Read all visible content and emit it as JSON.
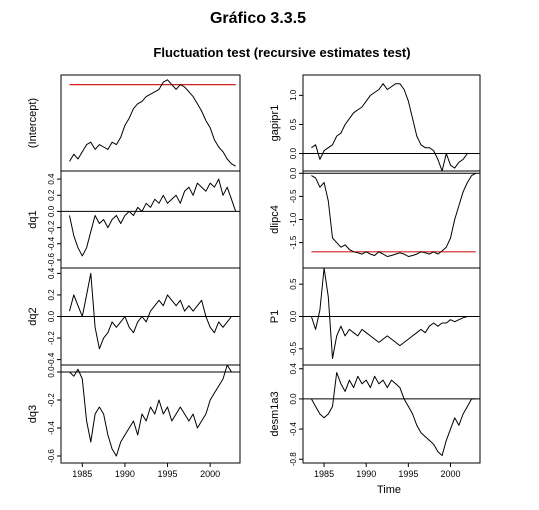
{
  "figure": {
    "suptitle": "Gráfico 3.3.5",
    "title": "Fluctuation test (recursive estimates test)",
    "xlabel_right": "Time",
    "colors": {
      "series": "#000000",
      "boundary": "#d02020",
      "reference": "#000000",
      "frame": "#000000"
    }
  },
  "chart_data": [
    {
      "type": "line",
      "name": "(Intercept)",
      "ylabel": "(Intercept)",
      "xlim": [
        1982.5,
        2003.5
      ],
      "ylim": [
        -0.1,
        1.9
      ],
      "yticks": [],
      "ytick_labels": [],
      "xticks": [],
      "xtick_labels": [],
      "boundary": 1.7,
      "reference": null,
      "series": [
        {
          "x": [
            1983.5,
            1984,
            1984.5,
            1985,
            1985.5,
            1986,
            1986.5,
            1987,
            1987.5,
            1988,
            1988.5,
            1989,
            1989.5,
            1990,
            1990.5,
            1991,
            1991.5,
            1992,
            1992.5,
            1993,
            1993.5,
            1994,
            1994.5,
            1995,
            1995.5,
            1996,
            1996.5,
            1997,
            1997.5,
            1998,
            1998.5,
            1999,
            1999.5,
            2000,
            2000.5,
            2001,
            2001.5,
            2002,
            2002.5,
            2003
          ],
          "y": [
            0.1,
            0.25,
            0.15,
            0.3,
            0.45,
            0.5,
            0.35,
            0.45,
            0.4,
            0.35,
            0.5,
            0.45,
            0.6,
            0.85,
            1.0,
            1.2,
            1.3,
            1.35,
            1.45,
            1.5,
            1.55,
            1.6,
            1.75,
            1.8,
            1.7,
            1.6,
            1.7,
            1.65,
            1.55,
            1.45,
            1.3,
            1.15,
            0.95,
            0.8,
            0.55,
            0.4,
            0.3,
            0.15,
            0.05,
            0.0
          ]
        }
      ]
    },
    {
      "type": "line",
      "name": "dq1",
      "ylabel": "dq1",
      "xlim": [
        1982.5,
        2003.5
      ],
      "ylim": [
        -0.7,
        0.5
      ],
      "yticks": [
        -0.6,
        -0.4,
        -0.2,
        0.0,
        0.2,
        0.4
      ],
      "ytick_labels": [
        "-0.6",
        "-0.4",
        "-0.2",
        "0.0",
        "0.2",
        "0.4"
      ],
      "xticks": [],
      "xtick_labels": [],
      "boundary": null,
      "reference": 0.0,
      "series": [
        {
          "x": [
            1983.5,
            1984,
            1984.5,
            1985,
            1985.5,
            1986,
            1986.5,
            1987,
            1987.5,
            1988,
            1988.5,
            1989,
            1989.5,
            1990,
            1990.5,
            1991,
            1991.5,
            1992,
            1992.5,
            1993,
            1993.5,
            1994,
            1994.5,
            1995,
            1995.5,
            1996,
            1996.5,
            1997,
            1997.5,
            1998,
            1998.5,
            1999,
            1999.5,
            2000,
            2000.5,
            2001,
            2001.5,
            2002,
            2002.5,
            2003
          ],
          "y": [
            -0.05,
            -0.3,
            -0.45,
            -0.55,
            -0.45,
            -0.25,
            -0.05,
            -0.15,
            -0.1,
            -0.2,
            -0.1,
            -0.05,
            -0.15,
            -0.05,
            0.0,
            -0.05,
            0.05,
            0.0,
            0.1,
            0.05,
            0.15,
            0.1,
            0.2,
            0.1,
            0.15,
            0.2,
            0.1,
            0.25,
            0.3,
            0.2,
            0.35,
            0.3,
            0.25,
            0.35,
            0.3,
            0.4,
            0.2,
            0.3,
            0.15,
            0.0
          ]
        }
      ]
    },
    {
      "type": "line",
      "name": "dq2",
      "ylabel": "dq2",
      "xlim": [
        1982.5,
        2003.5
      ],
      "ylim": [
        -0.45,
        0.45
      ],
      "yticks": [
        -0.4,
        -0.2,
        0.0,
        0.2,
        0.4
      ],
      "ytick_labels": [
        "-0.4",
        "-0.2",
        "0.0",
        "0.2",
        "0.4"
      ],
      "xticks": [],
      "xtick_labels": [],
      "boundary": null,
      "reference": 0.0,
      "series": [
        {
          "x": [
            1983.5,
            1984,
            1984.5,
            1985,
            1985.5,
            1986,
            1986.5,
            1987,
            1987.5,
            1988,
            1988.5,
            1989,
            1989.5,
            1990,
            1990.5,
            1991,
            1991.5,
            1992,
            1992.5,
            1993,
            1993.5,
            1994,
            1994.5,
            1995,
            1995.5,
            1996,
            1996.5,
            1997,
            1997.5,
            1998,
            1998.5,
            1999,
            1999.5,
            2000,
            2000.5,
            2001,
            2001.5,
            2002,
            2002.5,
            2003
          ],
          "y": [
            0.05,
            0.2,
            0.1,
            0.0,
            0.2,
            0.4,
            -0.1,
            -0.3,
            -0.2,
            -0.15,
            -0.05,
            -0.1,
            -0.05,
            0.0,
            -0.1,
            -0.15,
            -0.05,
            0.0,
            -0.05,
            0.05,
            0.1,
            0.15,
            0.1,
            0.2,
            0.15,
            0.1,
            0.15,
            0.05,
            0.1,
            0.05,
            0.1,
            0.15,
            0.0,
            -0.1,
            -0.15,
            -0.05,
            -0.1,
            -0.05,
            0.0,
            0.0
          ]
        }
      ]
    },
    {
      "type": "line",
      "name": "dq3",
      "ylabel": "dq3",
      "xlim": [
        1982.5,
        2003.5
      ],
      "ylim": [
        -0.65,
        0.05
      ],
      "yticks": [
        -0.6,
        -0.4,
        -0.2,
        0.0
      ],
      "ytick_labels": [
        "-0.6",
        "-0.4",
        "-0.2",
        "0.0"
      ],
      "xticks": [
        1985,
        1990,
        1995,
        2000
      ],
      "xtick_labels": [
        "1985",
        "1990",
        "1995",
        "2000"
      ],
      "boundary": null,
      "reference": 0.0,
      "series": [
        {
          "x": [
            1983.5,
            1984,
            1984.5,
            1985,
            1985.5,
            1986,
            1986.5,
            1987,
            1987.5,
            1988,
            1988.5,
            1989,
            1989.5,
            1990,
            1990.5,
            1991,
            1991.5,
            1992,
            1992.5,
            1993,
            1993.5,
            1994,
            1994.5,
            1995,
            1995.5,
            1996,
            1996.5,
            1997,
            1997.5,
            1998,
            1998.5,
            1999,
            1999.5,
            2000,
            2000.5,
            2001,
            2001.5,
            2002,
            2002.5,
            2003
          ],
          "y": [
            0.0,
            -0.03,
            0.02,
            -0.05,
            -0.35,
            -0.5,
            -0.3,
            -0.25,
            -0.3,
            -0.45,
            -0.55,
            -0.6,
            -0.5,
            -0.45,
            -0.4,
            -0.35,
            -0.45,
            -0.3,
            -0.35,
            -0.25,
            -0.3,
            -0.2,
            -0.3,
            -0.25,
            -0.35,
            -0.3,
            -0.25,
            -0.3,
            -0.35,
            -0.3,
            -0.4,
            -0.35,
            -0.3,
            -0.2,
            -0.15,
            -0.1,
            -0.05,
            0.05,
            0.0,
            0.0
          ]
        }
      ]
    },
    {
      "type": "line",
      "name": "gapipr1",
      "ylabel": "gapipr1",
      "xlim": [
        1982.5,
        2003.5
      ],
      "ylim": [
        -0.3,
        1.35
      ],
      "yticks": [
        0.0,
        0.5,
        1.0
      ],
      "ytick_labels": [
        "0.0",
        "0.5",
        "1.0"
      ],
      "xticks": [],
      "xtick_labels": [],
      "boundary": null,
      "reference": 0.0,
      "series": [
        {
          "x": [
            1983.5,
            1984,
            1984.5,
            1985,
            1985.5,
            1986,
            1986.5,
            1987,
            1987.5,
            1988,
            1988.5,
            1989,
            1989.5,
            1990,
            1990.5,
            1991,
            1991.5,
            1992,
            1992.5,
            1993,
            1993.5,
            1994,
            1994.5,
            1995,
            1995.5,
            1996,
            1996.5,
            1997,
            1997.5,
            1998,
            1998.5,
            1999,
            1999.5,
            2000,
            2000.5,
            2001,
            2001.5,
            2002,
            2002.5,
            2003
          ],
          "y": [
            0.1,
            0.15,
            -0.1,
            0.05,
            0.1,
            0.15,
            0.3,
            0.35,
            0.5,
            0.6,
            0.7,
            0.75,
            0.8,
            0.9,
            1.0,
            1.05,
            1.1,
            1.2,
            1.1,
            1.15,
            1.2,
            1.2,
            1.1,
            0.9,
            0.6,
            0.3,
            0.15,
            0.1,
            0.1,
            0.05,
            -0.1,
            -0.3,
            0.0,
            -0.2,
            -0.25,
            -0.15,
            -0.1,
            0.0,
            0.0,
            0.0
          ]
        }
      ]
    },
    {
      "type": "line",
      "name": "dlipc4",
      "ylabel": "dlipc4",
      "xlim": [
        1982.5,
        2003.5
      ],
      "ylim": [
        -2.05,
        0.05
      ],
      "yticks": [
        -1.5,
        -1.0,
        -0.5,
        0.0
      ],
      "ytick_labels": [
        "-1.5",
        "-1.0",
        "-0.5",
        "0.0"
      ],
      "xticks": [],
      "xtick_labels": [],
      "boundary": -1.7,
      "reference": 0.0,
      "series": [
        {
          "x": [
            1983.5,
            1984,
            1984.5,
            1985,
            1985.5,
            1986,
            1986.5,
            1987,
            1987.5,
            1988,
            1988.5,
            1989,
            1989.5,
            1990,
            1990.5,
            1991,
            1991.5,
            1992,
            1992.5,
            1993,
            1993.5,
            1994,
            1994.5,
            1995,
            1995.5,
            1996,
            1996.5,
            1997,
            1997.5,
            1998,
            1998.5,
            1999,
            1999.5,
            2000,
            2000.5,
            2001,
            2001.5,
            2002,
            2002.5,
            2003
          ],
          "y": [
            -0.05,
            -0.1,
            -0.3,
            -0.2,
            -0.6,
            -1.4,
            -1.5,
            -1.6,
            -1.55,
            -1.65,
            -1.7,
            -1.72,
            -1.75,
            -1.7,
            -1.75,
            -1.78,
            -1.7,
            -1.75,
            -1.8,
            -1.78,
            -1.75,
            -1.72,
            -1.75,
            -1.8,
            -1.78,
            -1.75,
            -1.7,
            -1.72,
            -1.75,
            -1.7,
            -1.75,
            -1.68,
            -1.6,
            -1.4,
            -1.0,
            -0.7,
            -0.4,
            -0.2,
            -0.05,
            0.0
          ]
        }
      ]
    },
    {
      "type": "line",
      "name": "P1",
      "ylabel": "P1",
      "xlim": [
        1982.5,
        2003.5
      ],
      "ylim": [
        -0.75,
        0.75
      ],
      "yticks": [
        -0.5,
        0.0,
        0.5
      ],
      "ytick_labels": [
        "-0.5",
        "0.0",
        "0.5"
      ],
      "xticks": [],
      "xtick_labels": [],
      "boundary": null,
      "reference": 0.0,
      "series": [
        {
          "x": [
            1983.5,
            1984,
            1984.5,
            1985,
            1985.5,
            1986,
            1986.5,
            1987,
            1987.5,
            1988,
            1988.5,
            1989,
            1989.5,
            1990,
            1990.5,
            1991,
            1991.5,
            1992,
            1992.5,
            1993,
            1993.5,
            1994,
            1994.5,
            1995,
            1995.5,
            1996,
            1996.5,
            1997,
            1997.5,
            1998,
            1998.5,
            1999,
            1999.5,
            2000,
            2000.5,
            2001,
            2001.5,
            2002,
            2002.5,
            2003
          ],
          "y": [
            0.0,
            -0.2,
            0.1,
            0.75,
            0.3,
            -0.65,
            -0.3,
            -0.15,
            -0.3,
            -0.2,
            -0.25,
            -0.3,
            -0.2,
            -0.25,
            -0.3,
            -0.35,
            -0.4,
            -0.35,
            -0.3,
            -0.35,
            -0.4,
            -0.45,
            -0.4,
            -0.35,
            -0.3,
            -0.25,
            -0.2,
            -0.25,
            -0.15,
            -0.1,
            -0.15,
            -0.1,
            -0.1,
            -0.05,
            -0.08,
            -0.05,
            -0.02,
            0.0,
            0.0,
            0.0
          ]
        }
      ]
    },
    {
      "type": "line",
      "name": "desm1a3",
      "ylabel": "desm1a3",
      "xlim": [
        1982.5,
        2003.5
      ],
      "ylim": [
        -0.85,
        0.45
      ],
      "yticks": [
        -0.8,
        -0.4,
        0.0,
        0.4
      ],
      "ytick_labels": [
        "-0.8",
        "-0.4",
        "0.0",
        "0.4"
      ],
      "xticks": [
        1985,
        1990,
        1995,
        2000
      ],
      "xtick_labels": [
        "1985",
        "1990",
        "1995",
        "2000"
      ],
      "boundary": null,
      "reference": 0.0,
      "series": [
        {
          "x": [
            1983.5,
            1984,
            1984.5,
            1985,
            1985.5,
            1986,
            1986.5,
            1987,
            1987.5,
            1988,
            1988.5,
            1989,
            1989.5,
            1990,
            1990.5,
            1991,
            1991.5,
            1992,
            1992.5,
            1993,
            1993.5,
            1994,
            1994.5,
            1995,
            1995.5,
            1996,
            1996.5,
            1997,
            1997.5,
            1998,
            1998.5,
            1999,
            1999.5,
            2000,
            2000.5,
            2001,
            2001.5,
            2002,
            2002.5,
            2003
          ],
          "y": [
            0.0,
            -0.1,
            -0.2,
            -0.25,
            -0.2,
            -0.1,
            0.35,
            0.2,
            0.1,
            0.25,
            0.15,
            0.3,
            0.2,
            0.25,
            0.15,
            0.3,
            0.2,
            0.25,
            0.15,
            0.25,
            0.2,
            0.15,
            0.0,
            -0.1,
            -0.2,
            -0.35,
            -0.45,
            -0.5,
            -0.55,
            -0.6,
            -0.7,
            -0.75,
            -0.55,
            -0.4,
            -0.25,
            -0.35,
            -0.2,
            -0.1,
            0.0,
            0.0
          ]
        }
      ]
    }
  ]
}
